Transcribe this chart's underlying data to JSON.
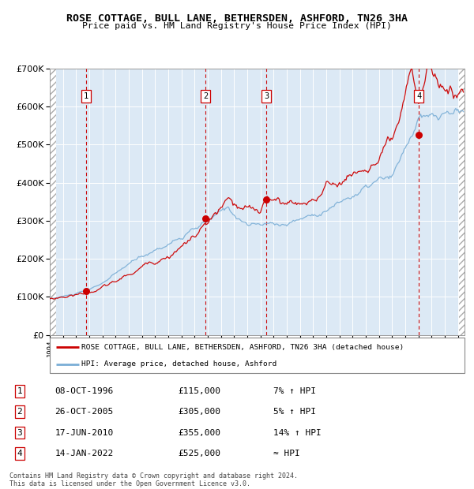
{
  "title": "ROSE COTTAGE, BULL LANE, BETHERSDEN, ASHFORD, TN26 3HA",
  "subtitle": "Price paid vs. HM Land Registry's House Price Index (HPI)",
  "legend_red": "ROSE COTTAGE, BULL LANE, BETHERSDEN, ASHFORD, TN26 3HA (detached house)",
  "legend_blue": "HPI: Average price, detached house, Ashford",
  "transactions": [
    {
      "num": 1,
      "date": "08-OCT-1996",
      "year": 1996.78,
      "price": 115000,
      "pct": "7% ↑ HPI"
    },
    {
      "num": 2,
      "date": "26-OCT-2005",
      "year": 2005.82,
      "price": 305000,
      "pct": "5% ↑ HPI"
    },
    {
      "num": 3,
      "date": "17-JUN-2010",
      "year": 2010.46,
      "price": 355000,
      "pct": "14% ↑ HPI"
    },
    {
      "num": 4,
      "date": "14-JAN-2022",
      "year": 2022.04,
      "price": 525000,
      "pct": "≈ HPI"
    }
  ],
  "footnote": "Contains HM Land Registry data © Crown copyright and database right 2024.\nThis data is licensed under the Open Government Licence v3.0.",
  "bg_color": "#dce9f5",
  "grid_color": "#ffffff",
  "red_line_color": "#cc0000",
  "blue_line_color": "#7aaed6",
  "dashed_color": "#cc0000",
  "dot_color": "#cc0000",
  "box_edge_color": "#cc0000",
  "ylim": [
    0,
    700000
  ],
  "xlim_start": 1994.0,
  "xlim_end": 2025.5
}
